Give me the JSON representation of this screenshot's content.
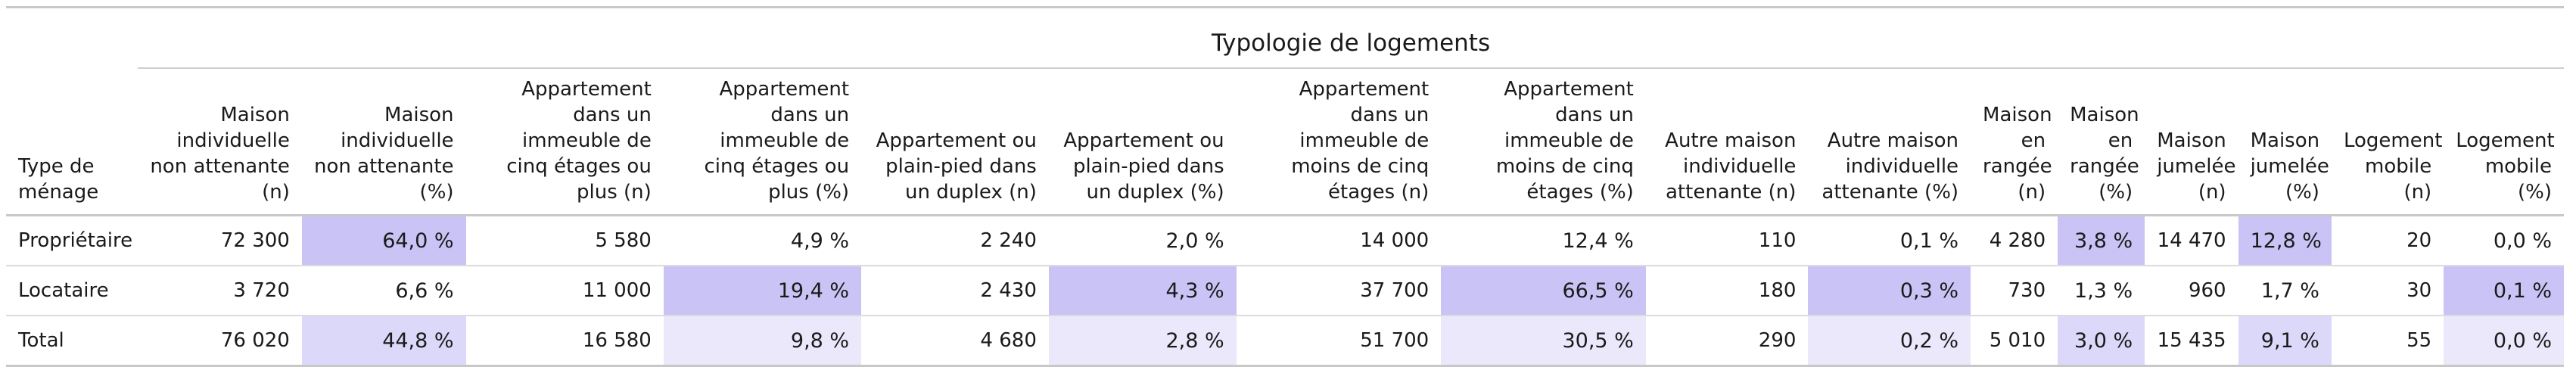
{
  "table": {
    "super_header": "Typologie de logements",
    "row_header": "Type de ménage",
    "columns": [
      "Maison individuelle non attenante (n)",
      "Maison individuelle non attenante (%)",
      "Appartement dans un immeuble de cinq étages ou plus (n)",
      "Appartement dans un immeuble de cinq étages ou plus (%)",
      "Appartement ou plain-pied dans un duplex (n)",
      "Appartement ou plain-pied dans un duplex (%)",
      "Appartement dans un immeuble de moins de cinq étages (n)",
      "Appartement dans un immeuble de moins de cinq étages (%)",
      "Autre maison individuelle attenante (n)",
      "Autre maison individuelle attenante (%)",
      "Maison en rangée (n)",
      "Maison en rangée (%)",
      "Maison jumelée (n)",
      "Maison jumelée (%)",
      "Logement mobile (n)",
      "Logement mobile (%)"
    ],
    "rows": [
      {
        "label": "Propriétaire",
        "cells": [
          "72 300",
          "64,0 %",
          "5 580",
          "4,9 %",
          "2 240",
          "2,0 %",
          "14 000",
          "12,4 %",
          "110",
          "0,1 %",
          "4 280",
          "3,8 %",
          "14 470",
          "12,8 %",
          "20",
          "0,0 %"
        ],
        "highlights": [
          "",
          "strong",
          "",
          "",
          "",
          "",
          "",
          "",
          "",
          "",
          "",
          "strong",
          "",
          "strong",
          "",
          ""
        ]
      },
      {
        "label": "Locataire",
        "cells": [
          "3 720",
          "6,6 %",
          "11 000",
          "19,4 %",
          "2 430",
          "4,3 %",
          "37 700",
          "66,5 %",
          "180",
          "0,3 %",
          "730",
          "1,3 %",
          "960",
          "1,7 %",
          "30",
          "0,1 %"
        ],
        "highlights": [
          "",
          "",
          "",
          "strong",
          "",
          "strong",
          "",
          "strong",
          "",
          "strong",
          "",
          "",
          "",
          "",
          "",
          "strong"
        ]
      },
      {
        "label": "Total",
        "cells": [
          "76 020",
          "44,8 %",
          "16 580",
          "9,8 %",
          "4 680",
          "2,8 %",
          "51 700",
          "30,5 %",
          "290",
          "0,2 %",
          "5 010",
          "3,0 %",
          "15 435",
          "9,1 %",
          "55",
          "0,0 %"
        ],
        "highlights": [
          "",
          "medium",
          "",
          "light",
          "",
          "light",
          "",
          "light",
          "",
          "light",
          "",
          "medium",
          "",
          "medium",
          "",
          "light"
        ]
      }
    ]
  },
  "colors": {
    "strong": "#c9c4f5",
    "medium": "#dcd8fa",
    "light": "#ebe8fc"
  }
}
